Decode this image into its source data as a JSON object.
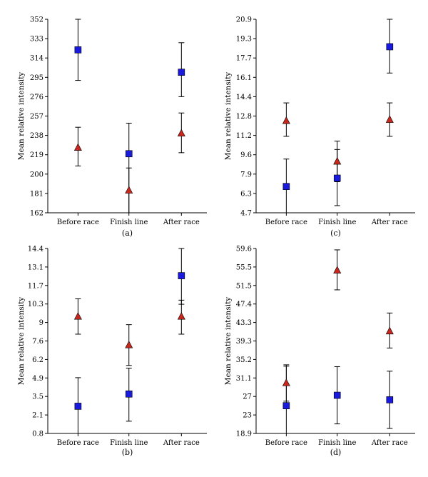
{
  "chart_data": [
    {
      "type": "scatter",
      "panel_label": "(a)",
      "ylabel": "Mean relative intensity",
      "categories": [
        "Before race",
        "Finish line",
        "After race"
      ],
      "yticks": [
        "162",
        "181",
        "200",
        "219",
        "238",
        "257",
        "276",
        "295",
        "314",
        "333",
        "352"
      ],
      "ylim": [
        162,
        352
      ],
      "series": [
        {
          "marker": "square",
          "color": "#1a1adc",
          "values": [
            322,
            220,
            300
          ],
          "err_low": [
            292,
            162,
            276
          ],
          "err_high": [
            352,
            250,
            329
          ]
        },
        {
          "marker": "triangle",
          "color": "#c8281e",
          "values": [
            226,
            184,
            240
          ],
          "err_low": [
            208,
            162,
            221
          ],
          "err_high": [
            246,
            206,
            260
          ]
        }
      ]
    },
    {
      "type": "scatter",
      "panel_label": "(c)",
      "ylabel": "Mean relative intensity",
      "categories": [
        "Before race",
        "Finish line",
        "After race"
      ],
      "yticks": [
        "4.7",
        "6.3",
        "7.9",
        "9.6",
        "11.2",
        "12.8",
        "14.4",
        "16.1",
        "17.7",
        "19.3",
        "20.9"
      ],
      "ylim": [
        4.7,
        20.9
      ],
      "series": [
        {
          "marker": "square",
          "color": "#1a1adc",
          "values": [
            6.9,
            7.6,
            18.6
          ],
          "err_low": [
            4.7,
            5.3,
            16.4
          ],
          "err_high": [
            9.2,
            10.0,
            20.9
          ]
        },
        {
          "marker": "triangle",
          "color": "#c8281e",
          "values": [
            12.4,
            9.0,
            12.5
          ],
          "err_low": [
            11.1,
            7.3,
            11.1
          ],
          "err_high": [
            13.9,
            10.7,
            13.9
          ]
        }
      ]
    },
    {
      "type": "scatter",
      "panel_label": "(b)",
      "ylabel": "Mean relative intensity",
      "categories": [
        "Before race",
        "Finish line",
        "After race"
      ],
      "yticks": [
        "0.8",
        "2.1",
        "3.5",
        "4.9",
        "6.2",
        "7.6",
        "9",
        "10.3",
        "11.7",
        "13.1",
        "14.4"
      ],
      "ylim": [
        0.8,
        14.4
      ],
      "series": [
        {
          "marker": "square",
          "color": "#1a1adc",
          "values": [
            2.8,
            3.7,
            12.4
          ],
          "err_low": [
            0.8,
            1.7,
            10.3
          ],
          "err_high": [
            4.9,
            5.6,
            14.4
          ]
        },
        {
          "marker": "triangle",
          "color": "#c8281e",
          "values": [
            9.4,
            7.3,
            9.4
          ],
          "err_low": [
            8.1,
            5.8,
            8.1
          ],
          "err_high": [
            10.7,
            8.8,
            10.6
          ]
        }
      ]
    },
    {
      "type": "scatter",
      "panel_label": "(d)",
      "ylabel": "Mean relative intensity",
      "categories": [
        "Before race",
        "Finish line",
        "After race"
      ],
      "yticks": [
        "18.9",
        "23",
        "27",
        "31.1",
        "35.2",
        "39.3",
        "43.3",
        "47.4",
        "51.5",
        "55.5",
        "59.6"
      ],
      "ylim": [
        18.9,
        59.6
      ],
      "series": [
        {
          "marker": "square",
          "color": "#1a1adc",
          "values": [
            25.0,
            27.3,
            26.3
          ],
          "err_low": [
            18.9,
            21.0,
            20.0
          ],
          "err_high": [
            34.0,
            33.6,
            32.6
          ]
        },
        {
          "marker": "triangle",
          "color": "#c8281e",
          "values": [
            30.0,
            54.8,
            41.4
          ],
          "err_low": [
            26.0,
            50.5,
            37.7
          ],
          "err_high": [
            33.7,
            59.3,
            45.4
          ]
        }
      ]
    }
  ]
}
